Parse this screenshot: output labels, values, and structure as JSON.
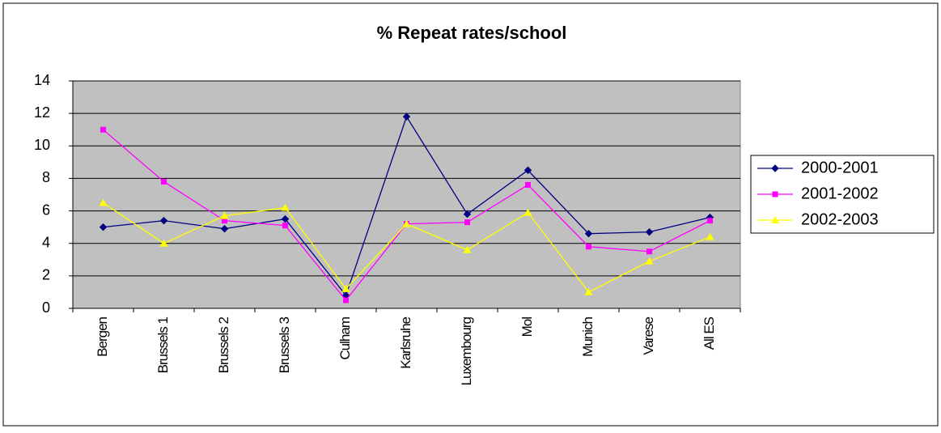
{
  "chart_data": {
    "type": "line",
    "title": "% Repeat rates/school",
    "categories": [
      "Bergen",
      "Brussels 1",
      "Brussels 2",
      "Brussels 3",
      "Culham",
      "Karlsruhe",
      "Luxembourg",
      "Mol",
      "Munich",
      "Varese",
      "All ES"
    ],
    "series": [
      {
        "name": "2000-2001",
        "color": "#000080",
        "marker": "diamond",
        "values": [
          5.0,
          5.4,
          4.9,
          5.5,
          0.8,
          11.8,
          5.8,
          8.5,
          4.6,
          4.7,
          5.6
        ]
      },
      {
        "name": "2001-2002",
        "color": "#ff00ff",
        "marker": "square",
        "values": [
          11.0,
          7.8,
          5.4,
          5.1,
          0.5,
          5.2,
          5.3,
          7.6,
          3.8,
          3.5,
          5.4
        ]
      },
      {
        "name": "2002-2003",
        "color": "#ffff00",
        "marker": "triangle",
        "values": [
          6.5,
          4.0,
          5.7,
          6.2,
          1.2,
          5.2,
          3.6,
          5.9,
          1.0,
          2.9,
          4.4
        ]
      }
    ],
    "ylim": [
      0,
      14
    ],
    "yticks": [
      0,
      2,
      4,
      6,
      8,
      10,
      12,
      14
    ],
    "grid": true,
    "legend": "right"
  }
}
